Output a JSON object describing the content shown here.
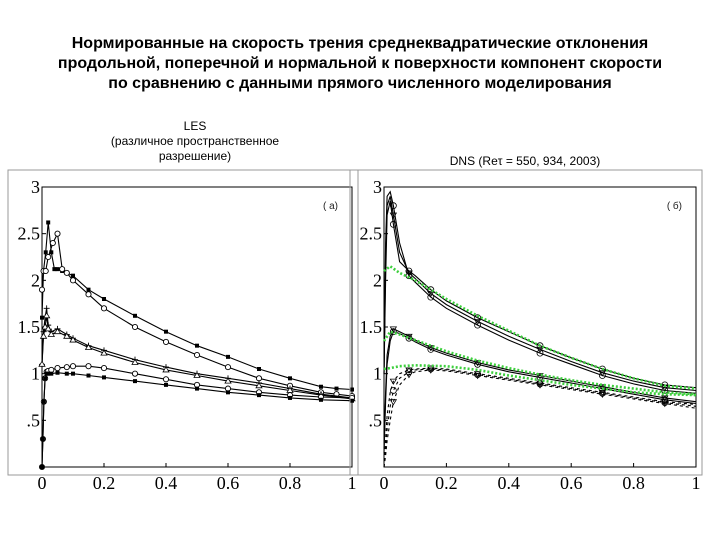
{
  "title_lines": [
    "Нормированные на скорость трения среднеквадратические отклонения",
    "продольной, поперечной и нормальной к поверхности компонент скорости",
    "по сравнению с данными прямого численного моделирования"
  ],
  "les_caption": [
    "LES",
    "(различное пространственное",
    "разрешение)"
  ],
  "dns_caption": "DNS (Reτ = 550, 934, 2003)",
  "colors": {
    "line": "#000000",
    "dns_green": "#3ecf3e",
    "frame": "#999999"
  },
  "chart_data": [
    {
      "type": "line",
      "panel_label": "( а)",
      "xlim": [
        0,
        1
      ],
      "ylim": [
        0,
        3
      ],
      "xticks": [
        0,
        0.2,
        0.4,
        0.6,
        0.8,
        1
      ],
      "xtick_labels": [
        "0",
        "0.2",
        "0.4",
        "0.6",
        "0.8",
        "1"
      ],
      "yticks": [
        0.5,
        1,
        1.5,
        2,
        2.5,
        3
      ],
      "ytick_labels": [
        ".5",
        "1",
        "1.5",
        "2",
        "2.5",
        "3"
      ],
      "grid": false,
      "series": [
        {
          "marker": "square",
          "x": [
            0,
            0.005,
            0.012,
            0.02,
            0.03,
            0.04,
            0.05,
            0.065,
            0.08,
            0.1,
            0.15,
            0.2,
            0.3,
            0.4,
            0.5,
            0.6,
            0.7,
            0.8,
            0.9,
            0.95,
            1
          ],
          "y": [
            1.6,
            2.1,
            2.3,
            2.62,
            2.3,
            2.12,
            2.12,
            2.1,
            2.08,
            2.05,
            1.9,
            1.8,
            1.62,
            1.45,
            1.3,
            1.18,
            1.05,
            0.95,
            0.86,
            0.84,
            0.83
          ]
        },
        {
          "marker": "circle",
          "x": [
            0,
            0.005,
            0.012,
            0.02,
            0.035,
            0.05,
            0.065,
            0.08,
            0.1,
            0.15,
            0.2,
            0.3,
            0.4,
            0.5,
            0.6,
            0.7,
            0.8,
            0.9,
            0.95,
            1
          ],
          "y": [
            1.9,
            2.1,
            2.1,
            2.25,
            2.4,
            2.5,
            2.12,
            2.08,
            2.0,
            1.85,
            1.7,
            1.5,
            1.34,
            1.2,
            1.07,
            0.95,
            0.87,
            0.8,
            0.78,
            0.76
          ]
        },
        {
          "marker": "plus",
          "x": [
            0,
            0.005,
            0.01,
            0.015,
            0.02,
            0.03,
            0.05,
            0.08,
            0.1,
            0.15,
            0.2,
            0.3,
            0.4,
            0.5,
            0.6,
            0.7,
            0.8,
            0.9,
            1
          ],
          "y": [
            1.1,
            1.45,
            1.6,
            1.7,
            1.52,
            1.45,
            1.48,
            1.42,
            1.38,
            1.3,
            1.25,
            1.15,
            1.07,
            1.0,
            0.95,
            0.9,
            0.84,
            0.78,
            0.74
          ]
        },
        {
          "marker": "triangle",
          "x": [
            0,
            0.005,
            0.01,
            0.015,
            0.02,
            0.03,
            0.05,
            0.08,
            0.1,
            0.15,
            0.2,
            0.3,
            0.4,
            0.5,
            0.6,
            0.7,
            0.8,
            0.9,
            1
          ],
          "y": [
            1.1,
            1.4,
            1.5,
            1.62,
            1.48,
            1.42,
            1.45,
            1.4,
            1.36,
            1.28,
            1.22,
            1.12,
            1.04,
            0.98,
            0.92,
            0.87,
            0.82,
            0.77,
            0.73
          ]
        },
        {
          "marker": "circle",
          "x": [
            0,
            0.003,
            0.006,
            0.01,
            0.015,
            0.02,
            0.03,
            0.05,
            0.08,
            0.1,
            0.15,
            0.2,
            0.3,
            0.4,
            0.5,
            0.6,
            0.7,
            0.8,
            0.9,
            1
          ],
          "y": [
            0.0,
            0.3,
            0.7,
            0.95,
            1.02,
            1.03,
            1.04,
            1.06,
            1.07,
            1.08,
            1.08,
            1.06,
            1.0,
            0.94,
            0.88,
            0.84,
            0.8,
            0.77,
            0.75,
            0.74
          ]
        },
        {
          "marker": "square",
          "x": [
            0,
            0.003,
            0.006,
            0.01,
            0.015,
            0.02,
            0.03,
            0.05,
            0.08,
            0.1,
            0.15,
            0.2,
            0.3,
            0.4,
            0.5,
            0.6,
            0.7,
            0.8,
            0.9,
            1
          ],
          "y": [
            0.0,
            0.3,
            0.7,
            0.95,
            1.0,
            1.0,
            1.0,
            1.01,
            1.0,
            1.0,
            0.98,
            0.96,
            0.92,
            0.88,
            0.84,
            0.8,
            0.77,
            0.74,
            0.72,
            0.71
          ]
        }
      ]
    },
    {
      "type": "line",
      "panel_label": "( б)",
      "xlim": [
        0,
        1
      ],
      "ylim": [
        0,
        3
      ],
      "xticks": [
        0,
        0.2,
        0.4,
        0.6,
        0.8,
        1
      ],
      "xtick_labels": [
        "0",
        "0.2",
        "0.4",
        "0.6",
        "0.8",
        "1"
      ],
      "yticks": [
        0.5,
        1,
        1.5,
        2,
        2.5,
        3
      ],
      "ytick_labels": [
        ".5",
        "1",
        "1.5",
        "2",
        "2.5",
        "3"
      ],
      "grid": false,
      "series": [
        {
          "style": "solid",
          "x": [
            0,
            0.005,
            0.01,
            0.02,
            0.03,
            0.05,
            0.08,
            0.1,
            0.15,
            0.2,
            0.3,
            0.4,
            0.5,
            0.6,
            0.7,
            0.8,
            0.9,
            1
          ],
          "y": [
            1.0,
            2.0,
            2.7,
            2.85,
            2.6,
            2.2,
            2.1,
            2.05,
            1.9,
            1.78,
            1.6,
            1.45,
            1.3,
            1.17,
            1.05,
            0.95,
            0.88,
            0.85
          ]
        },
        {
          "style": "solid",
          "x": [
            0,
            0.005,
            0.01,
            0.02,
            0.03,
            0.05,
            0.08,
            0.1,
            0.15,
            0.2,
            0.3,
            0.4,
            0.5,
            0.6,
            0.7,
            0.8,
            0.9,
            1
          ],
          "y": [
            1.0,
            2.2,
            2.8,
            2.9,
            2.7,
            2.3,
            2.08,
            2.02,
            1.86,
            1.74,
            1.56,
            1.4,
            1.26,
            1.13,
            1.01,
            0.92,
            0.85,
            0.82
          ]
        },
        {
          "style": "solid",
          "x": [
            0,
            0.005,
            0.01,
            0.02,
            0.03,
            0.05,
            0.08,
            0.1,
            0.15,
            0.2,
            0.3,
            0.4,
            0.5,
            0.6,
            0.7,
            0.8,
            0.9,
            1
          ],
          "y": [
            1.0,
            2.4,
            2.9,
            2.95,
            2.8,
            2.4,
            2.05,
            1.98,
            1.82,
            1.7,
            1.52,
            1.36,
            1.22,
            1.1,
            0.98,
            0.89,
            0.82,
            0.79
          ]
        },
        {
          "style": "solid",
          "x": [
            0,
            0.005,
            0.01,
            0.02,
            0.03,
            0.05,
            0.08,
            0.1,
            0.15,
            0.2,
            0.3,
            0.4,
            0.5,
            0.6,
            0.7,
            0.8,
            0.9,
            1
          ],
          "y": [
            0.2,
            0.8,
            1.2,
            1.4,
            1.48,
            1.45,
            1.4,
            1.36,
            1.28,
            1.22,
            1.12,
            1.04,
            0.98,
            0.92,
            0.86,
            0.8,
            0.74,
            0.7
          ]
        },
        {
          "style": "solid",
          "x": [
            0,
            0.005,
            0.01,
            0.02,
            0.03,
            0.05,
            0.08,
            0.1,
            0.15,
            0.2,
            0.3,
            0.4,
            0.5,
            0.6,
            0.7,
            0.8,
            0.9,
            1
          ],
          "y": [
            0.15,
            0.7,
            1.1,
            1.35,
            1.45,
            1.43,
            1.38,
            1.34,
            1.26,
            1.2,
            1.1,
            1.02,
            0.96,
            0.9,
            0.84,
            0.78,
            0.72,
            0.68
          ]
        },
        {
          "style": "dashed",
          "x": [
            0,
            0.005,
            0.01,
            0.02,
            0.03,
            0.05,
            0.08,
            0.1,
            0.15,
            0.2,
            0.3,
            0.4,
            0.5,
            0.6,
            0.7,
            0.8,
            0.9,
            1
          ],
          "y": [
            0.0,
            0.3,
            0.55,
            0.8,
            0.92,
            1.0,
            1.04,
            1.05,
            1.06,
            1.05,
            1.0,
            0.95,
            0.9,
            0.85,
            0.8,
            0.75,
            0.7,
            0.67
          ]
        },
        {
          "style": "dashed",
          "x": [
            0,
            0.005,
            0.01,
            0.02,
            0.03,
            0.05,
            0.08,
            0.1,
            0.15,
            0.2,
            0.3,
            0.4,
            0.5,
            0.6,
            0.7,
            0.8,
            0.9,
            1
          ],
          "y": [
            0.0,
            0.2,
            0.4,
            0.65,
            0.82,
            0.95,
            1.02,
            1.04,
            1.05,
            1.04,
            0.99,
            0.94,
            0.89,
            0.84,
            0.79,
            0.74,
            0.69,
            0.65
          ]
        },
        {
          "style": "dashed",
          "x": [
            0,
            0.005,
            0.01,
            0.02,
            0.03,
            0.05,
            0.08,
            0.1,
            0.15,
            0.2,
            0.3,
            0.4,
            0.5,
            0.6,
            0.7,
            0.8,
            0.9,
            1
          ],
          "y": [
            0.0,
            0.12,
            0.28,
            0.5,
            0.7,
            0.88,
            0.99,
            1.02,
            1.04,
            1.03,
            0.98,
            0.93,
            0.88,
            0.83,
            0.78,
            0.73,
            0.68,
            0.63
          ]
        },
        {
          "style": "green-dotted",
          "x": [
            0,
            0.02,
            0.05,
            0.1,
            0.2,
            0.3,
            0.4,
            0.5,
            0.6,
            0.7,
            0.8,
            0.9,
            1
          ],
          "y": [
            2.1,
            2.15,
            2.08,
            2.0,
            1.8,
            1.62,
            1.46,
            1.3,
            1.17,
            1.05,
            0.95,
            0.87,
            0.84
          ]
        },
        {
          "style": "green-dotted",
          "x": [
            0,
            0.02,
            0.05,
            0.1,
            0.2,
            0.3,
            0.4,
            0.5,
            0.6,
            0.7,
            0.8,
            0.9,
            1
          ],
          "y": [
            1.35,
            1.45,
            1.42,
            1.36,
            1.24,
            1.14,
            1.06,
            0.99,
            0.93,
            0.88,
            0.84,
            0.8,
            0.78
          ]
        },
        {
          "style": "green-dotted",
          "x": [
            0,
            0.02,
            0.05,
            0.1,
            0.2,
            0.3,
            0.4,
            0.5,
            0.6,
            0.7,
            0.8,
            0.9,
            1
          ],
          "y": [
            1.05,
            1.06,
            1.08,
            1.09,
            1.08,
            1.04,
            0.98,
            0.93,
            0.88,
            0.84,
            0.8,
            0.78,
            0.77
          ]
        }
      ]
    }
  ]
}
